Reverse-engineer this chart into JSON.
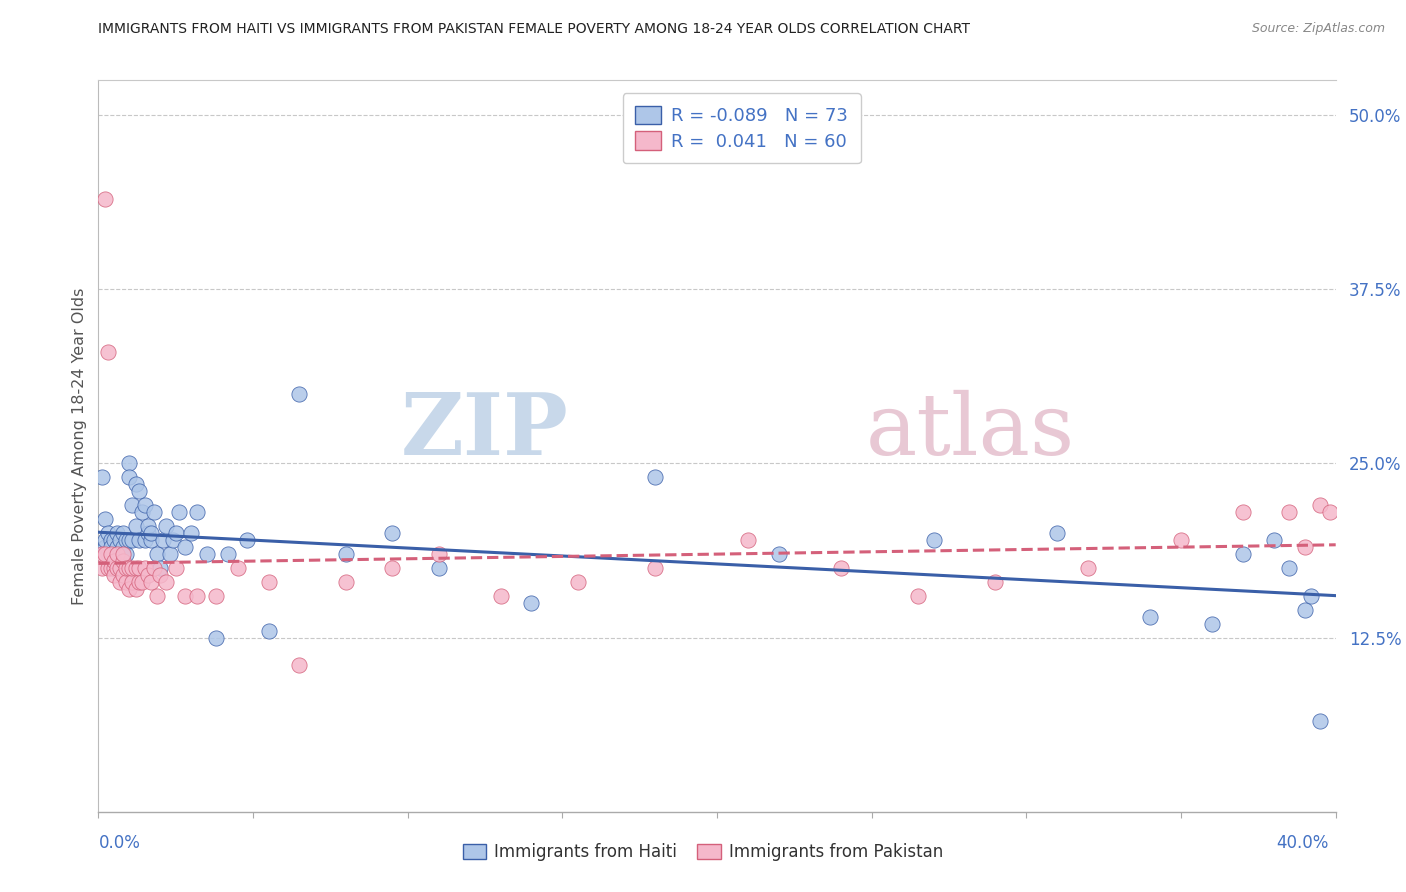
{
  "title": "IMMIGRANTS FROM HAITI VS IMMIGRANTS FROM PAKISTAN FEMALE POVERTY AMONG 18-24 YEAR OLDS CORRELATION CHART",
  "source": "Source: ZipAtlas.com",
  "ylabel": "Female Poverty Among 18-24 Year Olds",
  "legend_r_haiti": "R = -0.089",
  "legend_n_haiti": "N = 73",
  "legend_r_pakistan": "R =  0.041",
  "legend_n_pakistan": "N = 60",
  "legend_label_haiti": "Immigrants from Haiti",
  "legend_label_pakistan": "Immigrants from Pakistan",
  "color_haiti": "#aec6e8",
  "color_pakistan": "#f5b8cb",
  "color_trendline_haiti": "#3a5fa8",
  "color_trendline_pakistan": "#d4607a",
  "watermark_zip": "ZIP",
  "watermark_atlas": "atlas",
  "haiti_x": [
    0.001,
    0.002,
    0.002,
    0.002,
    0.003,
    0.003,
    0.004,
    0.004,
    0.004,
    0.005,
    0.005,
    0.005,
    0.006,
    0.006,
    0.006,
    0.007,
    0.007,
    0.007,
    0.008,
    0.008,
    0.008,
    0.009,
    0.009,
    0.01,
    0.01,
    0.01,
    0.011,
    0.011,
    0.012,
    0.012,
    0.013,
    0.013,
    0.014,
    0.015,
    0.015,
    0.016,
    0.016,
    0.017,
    0.017,
    0.018,
    0.019,
    0.02,
    0.021,
    0.022,
    0.023,
    0.024,
    0.025,
    0.026,
    0.028,
    0.03,
    0.032,
    0.035,
    0.038,
    0.042,
    0.048,
    0.055,
    0.065,
    0.08,
    0.095,
    0.11,
    0.14,
    0.18,
    0.22,
    0.27,
    0.31,
    0.34,
    0.36,
    0.37,
    0.38,
    0.385,
    0.39,
    0.392,
    0.395
  ],
  "haiti_y": [
    0.24,
    0.21,
    0.19,
    0.195,
    0.2,
    0.185,
    0.195,
    0.18,
    0.19,
    0.195,
    0.185,
    0.175,
    0.2,
    0.19,
    0.185,
    0.195,
    0.185,
    0.175,
    0.2,
    0.19,
    0.185,
    0.195,
    0.185,
    0.25,
    0.24,
    0.195,
    0.22,
    0.195,
    0.235,
    0.205,
    0.23,
    0.195,
    0.215,
    0.22,
    0.195,
    0.2,
    0.205,
    0.195,
    0.2,
    0.215,
    0.185,
    0.175,
    0.195,
    0.205,
    0.185,
    0.195,
    0.2,
    0.215,
    0.19,
    0.2,
    0.215,
    0.185,
    0.125,
    0.185,
    0.195,
    0.13,
    0.3,
    0.185,
    0.2,
    0.175,
    0.15,
    0.24,
    0.185,
    0.195,
    0.2,
    0.14,
    0.135,
    0.185,
    0.195,
    0.175,
    0.145,
    0.155,
    0.065
  ],
  "pakistan_x": [
    0.001,
    0.001,
    0.002,
    0.002,
    0.003,
    0.003,
    0.004,
    0.004,
    0.005,
    0.005,
    0.005,
    0.006,
    0.006,
    0.007,
    0.007,
    0.008,
    0.008,
    0.008,
    0.009,
    0.009,
    0.01,
    0.01,
    0.011,
    0.011,
    0.012,
    0.012,
    0.013,
    0.013,
    0.014,
    0.015,
    0.016,
    0.017,
    0.018,
    0.019,
    0.02,
    0.022,
    0.025,
    0.028,
    0.032,
    0.038,
    0.045,
    0.055,
    0.065,
    0.08,
    0.095,
    0.11,
    0.13,
    0.155,
    0.18,
    0.21,
    0.24,
    0.265,
    0.29,
    0.32,
    0.35,
    0.37,
    0.385,
    0.39,
    0.395,
    0.398
  ],
  "pakistan_y": [
    0.175,
    0.185,
    0.44,
    0.185,
    0.33,
    0.175,
    0.175,
    0.185,
    0.175,
    0.18,
    0.17,
    0.175,
    0.185,
    0.165,
    0.175,
    0.17,
    0.18,
    0.185,
    0.165,
    0.175,
    0.16,
    0.175,
    0.165,
    0.175,
    0.16,
    0.175,
    0.165,
    0.175,
    0.165,
    0.175,
    0.17,
    0.165,
    0.175,
    0.155,
    0.17,
    0.165,
    0.175,
    0.155,
    0.155,
    0.155,
    0.175,
    0.165,
    0.105,
    0.165,
    0.175,
    0.185,
    0.155,
    0.165,
    0.175,
    0.195,
    0.175,
    0.155,
    0.165,
    0.175,
    0.195,
    0.215,
    0.215,
    0.19,
    0.22,
    0.215
  ],
  "xlim": [
    0.0,
    0.4
  ],
  "ylim": [
    0.0,
    0.525
  ],
  "yticks": [
    0.0,
    0.125,
    0.25,
    0.375,
    0.5
  ],
  "ytick_labels": [
    "",
    "12.5%",
    "25.0%",
    "37.5%",
    "50.0%"
  ],
  "bg_color": "#ffffff",
  "grid_color": "#c8c8c8",
  "title_color": "#222222",
  "tick_label_color": "#4472c4",
  "source_color": "#888888"
}
